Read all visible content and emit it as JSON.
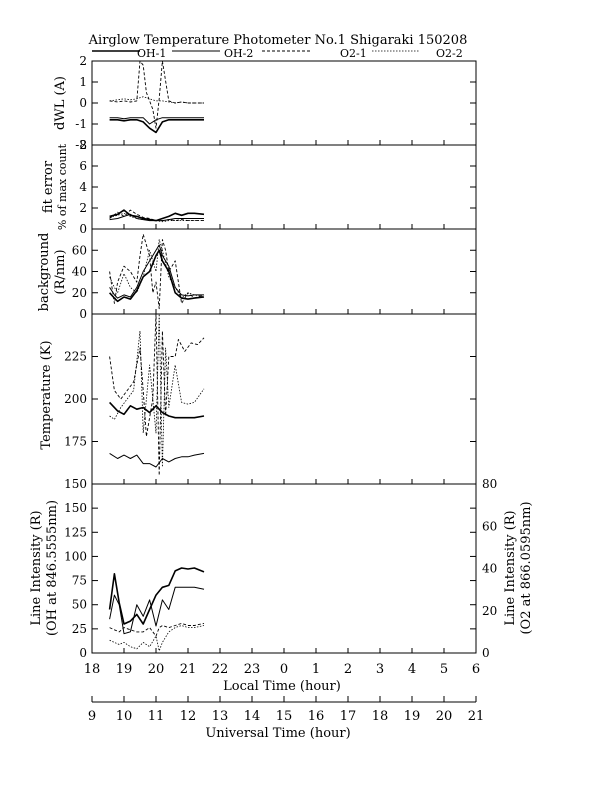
{
  "title": "Airglow Temperature Photometer No.1  Shigaraki  150208",
  "legend": [
    {
      "name": "OH-1",
      "dash": "solid",
      "width": 1.6
    },
    {
      "name": "OH-2",
      "dash": "solid",
      "width": 1.0
    },
    {
      "name": "O2-1",
      "dash": "3,2",
      "width": 0.9
    },
    {
      "name": "O2-2",
      "dash": "1.5,1.5",
      "width": 0.8
    }
  ],
  "x_axes": {
    "local": {
      "label": "Local Time (hour)",
      "ticks": [
        "18",
        "19",
        "20",
        "21",
        "22",
        "23",
        "0",
        "1",
        "2",
        "3",
        "4",
        "5",
        "6"
      ]
    },
    "universal": {
      "label": "Universal Time (hour)",
      "ticks": [
        "9",
        "10",
        "11",
        "12",
        "13",
        "14",
        "15",
        "16",
        "17",
        "18",
        "19",
        "20",
        "21"
      ]
    }
  },
  "chart_data": [
    {
      "type": "line",
      "ylabel": "dWL (A)",
      "ylim": [
        -2,
        2
      ],
      "yticks": [
        "-2",
        "-1",
        "0",
        "1",
        "2"
      ],
      "x_unit": "local time hours (18 to 30)",
      "series": [
        {
          "name": "OH-1",
          "x": [
            18.55,
            18.8,
            19.0,
            19.2,
            19.4,
            19.6,
            19.8,
            20.0,
            20.2,
            20.4,
            20.6,
            20.8,
            21.0,
            21.2,
            21.5
          ],
          "y": [
            -0.8,
            -0.8,
            -0.85,
            -0.8,
            -0.8,
            -0.9,
            -1.2,
            -1.4,
            -0.9,
            -0.8,
            -0.8,
            -0.8,
            -0.8,
            -0.8,
            -0.8
          ]
        },
        {
          "name": "OH-2",
          "x": [
            18.55,
            18.8,
            19.0,
            19.2,
            19.4,
            19.6,
            19.8,
            20.0,
            20.2,
            20.4,
            20.6,
            20.8,
            21.0,
            21.2,
            21.5
          ],
          "y": [
            -0.7,
            -0.7,
            -0.75,
            -0.7,
            -0.7,
            -0.7,
            -1.0,
            -0.8,
            -0.7,
            -0.7,
            -0.7,
            -0.7,
            -0.7,
            -0.7,
            -0.7
          ]
        },
        {
          "name": "O2-1",
          "x": [
            18.55,
            18.8,
            19.0,
            19.2,
            19.4,
            19.5,
            19.6,
            19.7,
            19.9,
            20.0,
            20.1,
            20.2,
            20.4,
            20.6,
            20.8,
            21.0,
            21.2,
            21.5
          ],
          "y": [
            0.1,
            0.05,
            0.1,
            0.05,
            0.1,
            2.0,
            1.8,
            0.5,
            -0.3,
            -1.2,
            0.2,
            2.0,
            0.1,
            0.0,
            0.05,
            0.0,
            0.0,
            0.0
          ]
        },
        {
          "name": "O2-2",
          "x": [
            18.55,
            18.8,
            19.0,
            19.2,
            19.4,
            19.6,
            19.8,
            20.0,
            20.2,
            20.4,
            20.6,
            20.8,
            21.0,
            21.2,
            21.5
          ],
          "y": [
            0.1,
            0.15,
            0.2,
            0.15,
            0.2,
            0.3,
            0.2,
            0.1,
            0.1,
            0.05,
            0.0,
            0.05,
            0.0,
            0.0,
            0.0
          ]
        }
      ]
    },
    {
      "type": "line",
      "ylabel": "fit error",
      "ylabel2": "% of max count",
      "ylim": [
        0,
        8
      ],
      "yticks": [
        "0",
        "2",
        "4",
        "6",
        "8"
      ],
      "x_unit": "local time hours (18 to 30)",
      "series": [
        {
          "name": "OH-1",
          "x": [
            18.55,
            18.8,
            19.0,
            19.2,
            19.4,
            19.6,
            19.8,
            20.0,
            20.2,
            20.4,
            20.6,
            20.8,
            21.0,
            21.2,
            21.5
          ],
          "y": [
            1.2,
            1.4,
            1.8,
            1.3,
            1.2,
            1.0,
            0.9,
            0.8,
            1.0,
            1.2,
            1.5,
            1.3,
            1.5,
            1.5,
            1.4
          ]
        },
        {
          "name": "OH-2",
          "x": [
            18.55,
            18.8,
            19.0,
            19.2,
            19.4,
            19.6,
            19.8,
            20.0,
            20.2,
            20.4,
            20.6,
            20.8,
            21.0,
            21.2,
            21.5
          ],
          "y": [
            0.9,
            1.0,
            1.2,
            1.4,
            1.0,
            0.9,
            0.8,
            0.8,
            0.8,
            0.9,
            1.0,
            1.0,
            1.0,
            1.0,
            1.0
          ]
        },
        {
          "name": "O2-1",
          "x": [
            18.55,
            18.8,
            19.0,
            19.2,
            19.4,
            19.6,
            19.8,
            20.0,
            20.2,
            20.4,
            20.6,
            20.8,
            21.0,
            21.2,
            21.5
          ],
          "y": [
            1.0,
            1.6,
            1.2,
            1.8,
            1.4,
            1.1,
            1.0,
            0.8,
            0.8,
            0.9,
            0.8,
            0.9,
            0.8,
            0.8,
            0.8
          ]
        },
        {
          "name": "O2-2",
          "x": [
            18.55,
            18.8,
            19.0,
            19.2,
            19.4,
            19.6,
            19.8,
            20.0,
            20.2,
            20.4,
            20.6,
            20.8,
            21.0,
            21.2,
            21.5
          ],
          "y": [
            1.1,
            1.3,
            1.5,
            1.2,
            1.0,
            0.9,
            0.9,
            0.8,
            0.7,
            0.8,
            0.8,
            0.8,
            0.8,
            0.8,
            0.8
          ]
        }
      ]
    },
    {
      "type": "line",
      "ylabel": "background",
      "ylabel2": "(R/nm)",
      "ylim": [
        0,
        80
      ],
      "yticks": [
        "0",
        "20",
        "40",
        "60"
      ],
      "x_unit": "local time hours (18 to 30)",
      "series": [
        {
          "name": "OH-1",
          "x": [
            18.55,
            18.7,
            18.8,
            19.0,
            19.2,
            19.4,
            19.6,
            19.8,
            20.0,
            20.1,
            20.2,
            20.4,
            20.6,
            20.8,
            21.0,
            21.2,
            21.5
          ],
          "y": [
            20,
            15,
            12,
            16,
            14,
            22,
            35,
            40,
            55,
            60,
            50,
            40,
            20,
            15,
            14,
            15,
            16
          ]
        },
        {
          "name": "OH-2",
          "x": [
            18.55,
            18.7,
            18.8,
            19.0,
            19.2,
            19.4,
            19.6,
            19.8,
            20.0,
            20.1,
            20.2,
            20.4,
            20.6,
            20.8,
            21.0,
            21.2,
            21.5
          ],
          "y": [
            25,
            18,
            15,
            18,
            16,
            25,
            40,
            50,
            60,
            65,
            55,
            45,
            25,
            18,
            17,
            18,
            18
          ]
        },
        {
          "name": "O2-1",
          "x": [
            18.55,
            18.7,
            18.8,
            19.0,
            19.2,
            19.4,
            19.5,
            19.6,
            19.8,
            19.9,
            20.0,
            20.1,
            20.2,
            20.3,
            20.4,
            20.6,
            20.8,
            21.0,
            21.2,
            21.5
          ],
          "y": [
            40,
            10,
            30,
            45,
            40,
            30,
            55,
            75,
            55,
            20,
            30,
            5,
            70,
            60,
            40,
            50,
            10,
            20,
            15,
            18
          ]
        },
        {
          "name": "O2-2",
          "x": [
            18.55,
            18.7,
            18.8,
            19.0,
            19.2,
            19.4,
            19.6,
            19.8,
            20.0,
            20.1,
            20.2,
            20.4,
            20.6,
            20.8,
            21.0,
            21.2,
            21.5
          ],
          "y": [
            35,
            25,
            20,
            38,
            25,
            20,
            35,
            60,
            40,
            70,
            60,
            35,
            25,
            15,
            20,
            18,
            16
          ]
        }
      ]
    },
    {
      "type": "line",
      "ylabel": "Temperature (K)",
      "ylim": [
        150,
        250
      ],
      "yticks": [
        "150",
        "175",
        "200",
        "225"
      ],
      "x_unit": "local time hours (18 to 30)",
      "series": [
        {
          "name": "OH-1",
          "x": [
            18.55,
            18.8,
            19.0,
            19.2,
            19.4,
            19.6,
            19.8,
            20.0,
            20.2,
            20.4,
            20.6,
            20.8,
            21.0,
            21.2,
            21.5
          ],
          "y": [
            198,
            193,
            191,
            196,
            194,
            195,
            192,
            196,
            192,
            190,
            189,
            189,
            189,
            189,
            190
          ]
        },
        {
          "name": "OH-2",
          "x": [
            18.55,
            18.8,
            19.0,
            19.2,
            19.4,
            19.6,
            19.8,
            20.0,
            20.2,
            20.4,
            20.6,
            20.8,
            21.0,
            21.2,
            21.5
          ],
          "y": [
            168,
            165,
            167,
            165,
            167,
            162,
            162,
            160,
            165,
            163,
            165,
            166,
            166,
            167,
            168
          ]
        },
        {
          "name": "O2-1",
          "x": [
            18.55,
            18.7,
            18.9,
            19.1,
            19.3,
            19.5,
            19.6,
            19.7,
            19.9,
            20.0,
            20.1,
            20.2,
            20.3,
            20.4,
            20.6,
            20.7,
            20.9,
            21.1,
            21.3,
            21.5
          ],
          "y": [
            225,
            205,
            200,
            205,
            210,
            230,
            205,
            178,
            200,
            250,
            155,
            240,
            190,
            225,
            225,
            235,
            228,
            233,
            232,
            236
          ]
        },
        {
          "name": "O2-2",
          "x": [
            18.55,
            18.7,
            18.9,
            19.1,
            19.3,
            19.5,
            19.6,
            19.8,
            20.0,
            20.1,
            20.2,
            20.3,
            20.4,
            20.6,
            20.8,
            21.0,
            21.2,
            21.5
          ],
          "y": [
            190,
            188,
            195,
            200,
            205,
            240,
            180,
            220,
            180,
            250,
            160,
            230,
            195,
            220,
            198,
            197,
            198,
            206
          ]
        }
      ]
    },
    {
      "type": "line",
      "ylabel": "Line Intensity (R)",
      "ylabel2": "(OH at 846.5555nm)",
      "ylim": [
        0,
        175
      ],
      "yticks": [
        "0",
        "25",
        "50",
        "75",
        "100",
        "125",
        "150"
      ],
      "y2label": "Line Intensity (R)",
      "y2label2": "(O2 at 866.0595nm)",
      "y2lim": [
        0,
        80
      ],
      "y2ticks": [
        "0",
        "20",
        "40",
        "60",
        "80"
      ],
      "x_unit": "local time hours (18 to 30)",
      "series": [
        {
          "name": "OH-1",
          "axis": "left",
          "x": [
            18.55,
            18.7,
            18.85,
            19.0,
            19.2,
            19.4,
            19.6,
            19.8,
            20.0,
            20.2,
            20.4,
            20.6,
            20.8,
            21.0,
            21.2,
            21.5
          ],
          "y": [
            45,
            82,
            52,
            30,
            33,
            40,
            30,
            45,
            60,
            68,
            70,
            85,
            88,
            87,
            88,
            84
          ]
        },
        {
          "name": "OH-2",
          "axis": "left",
          "x": [
            18.55,
            18.7,
            18.85,
            19.0,
            19.2,
            19.4,
            19.6,
            19.8,
            20.0,
            20.2,
            20.4,
            20.6,
            20.8,
            21.0,
            21.2,
            21.5
          ],
          "y": [
            35,
            60,
            50,
            20,
            22,
            50,
            38,
            55,
            28,
            55,
            45,
            68,
            68,
            68,
            68,
            66
          ]
        },
        {
          "name": "O2-1",
          "axis": "right",
          "x": [
            18.55,
            18.7,
            18.85,
            19.0,
            19.2,
            19.4,
            19.6,
            19.8,
            20.0,
            20.1,
            20.2,
            20.4,
            20.6,
            20.8,
            21.0,
            21.2,
            21.5
          ],
          "y": [
            12,
            11,
            10,
            12,
            11,
            10,
            10,
            12,
            8,
            12,
            13,
            12,
            13,
            14,
            13,
            13,
            14
          ]
        },
        {
          "name": "O2-2",
          "axis": "right",
          "x": [
            18.55,
            18.7,
            18.85,
            19.0,
            19.2,
            19.4,
            19.6,
            19.8,
            20.0,
            20.1,
            20.2,
            20.4,
            20.6,
            20.8,
            21.0,
            21.2,
            21.5
          ],
          "y": [
            6,
            5,
            4,
            5,
            3,
            2,
            5,
            3,
            8,
            1,
            5,
            10,
            12,
            13,
            12,
            12,
            13
          ]
        }
      ]
    }
  ]
}
